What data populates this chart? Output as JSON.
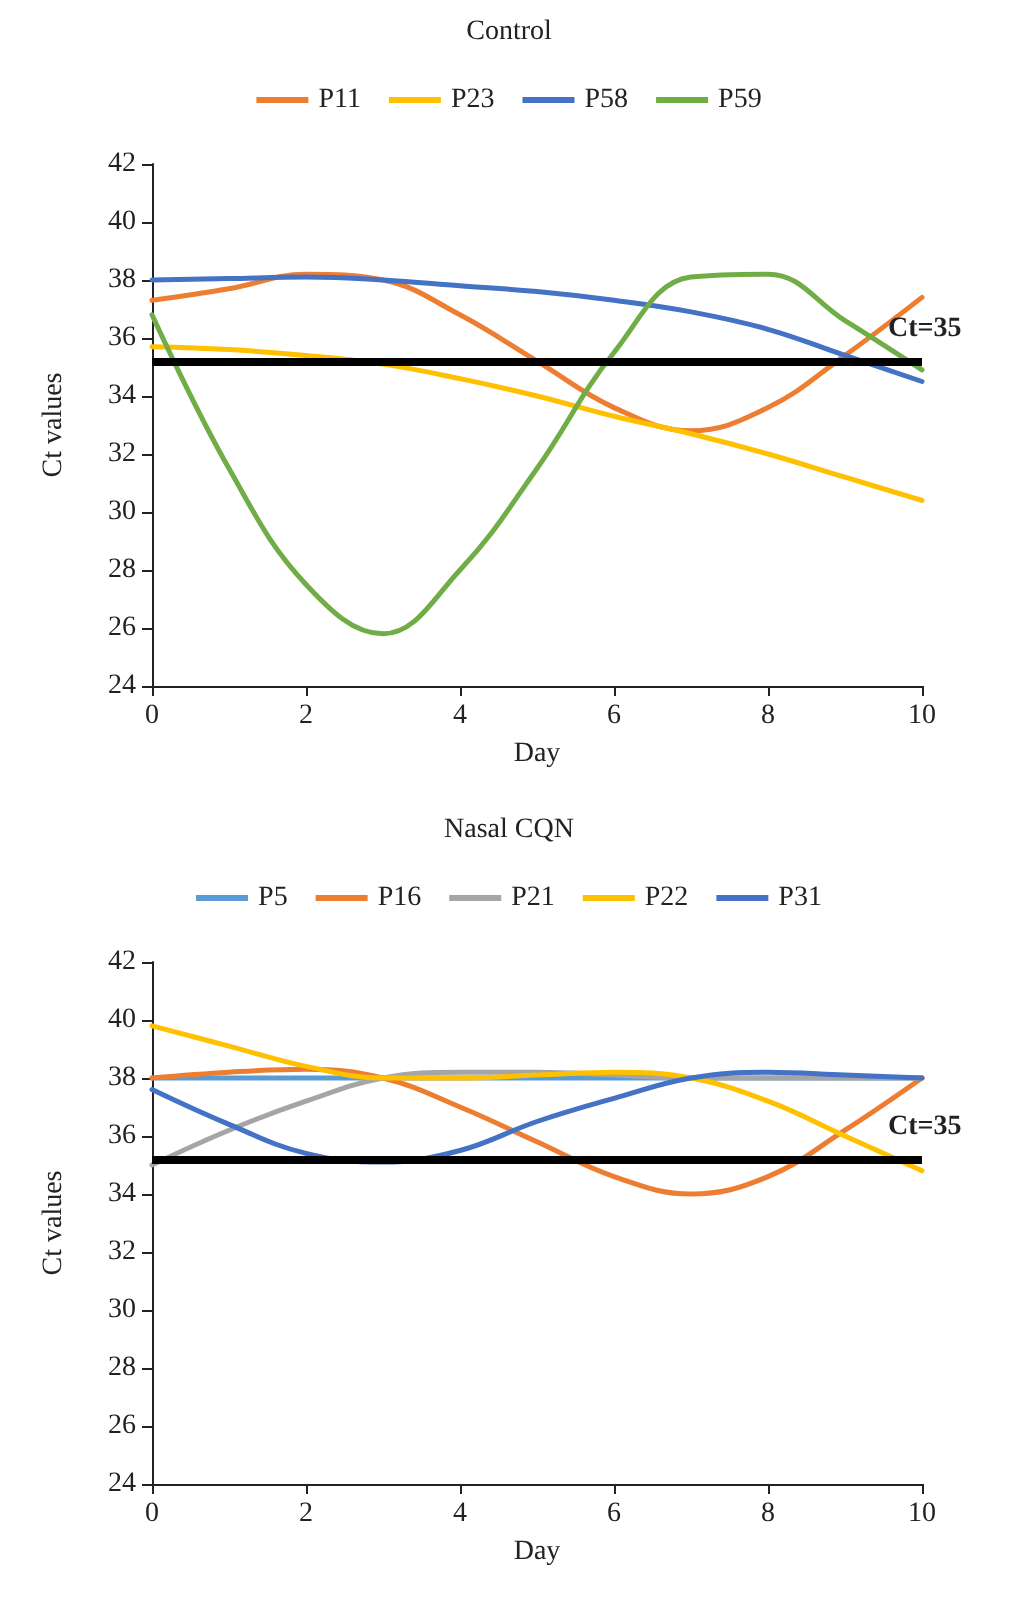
{
  "chart_data": [
    {
      "type": "line",
      "title": "Control",
      "xlabel": "Day",
      "ylabel": "Ct values",
      "x": [
        0,
        1,
        2,
        3,
        4,
        5,
        6,
        7,
        8,
        9,
        10
      ],
      "xlim": [
        0,
        10
      ],
      "xticks": [
        0,
        2,
        4,
        6,
        8,
        10
      ],
      "ylim": [
        24,
        42
      ],
      "yticks": [
        24,
        26,
        28,
        30,
        32,
        34,
        36,
        38,
        40,
        42
      ],
      "grid": false,
      "legend": "top",
      "marker": "none",
      "line_style": "solid",
      "series": [
        {
          "name": "P11",
          "color": "#ed7d31",
          "values": [
            37.3,
            37.7,
            38.2,
            38.0,
            36.8,
            35.2,
            33.6,
            32.8,
            33.6,
            35.4,
            37.4
          ]
        },
        {
          "name": "P23",
          "color": "#ffc000",
          "values": [
            35.7,
            35.6,
            35.4,
            35.1,
            34.6,
            34.0,
            33.3,
            32.7,
            32.0,
            31.2,
            30.4
          ]
        },
        {
          "name": "P58",
          "color": "#4472c4",
          "values": [
            38.0,
            38.05,
            38.1,
            38.0,
            37.8,
            37.6,
            37.3,
            36.9,
            36.3,
            35.4,
            34.5
          ]
        },
        {
          "name": "P59",
          "color": "#70ad47",
          "values": [
            36.8,
            31.5,
            27.5,
            25.8,
            28.0,
            31.5,
            35.5,
            38.1,
            38.2,
            36.6,
            34.9
          ]
        }
      ],
      "ref_lines": [
        {
          "axis": "y",
          "value": 35.2,
          "label": "Ct=35",
          "color": "#000000"
        }
      ]
    },
    {
      "type": "line",
      "title": "Nasal CQN",
      "xlabel": "Day",
      "ylabel": "Ct values",
      "x": [
        0,
        1,
        2,
        3,
        4,
        5,
        6,
        7,
        8,
        9,
        10
      ],
      "xlim": [
        0,
        10
      ],
      "xticks": [
        0,
        2,
        4,
        6,
        8,
        10
      ],
      "ylim": [
        24,
        42
      ],
      "yticks": [
        24,
        26,
        28,
        30,
        32,
        34,
        36,
        38,
        40,
        42
      ],
      "grid": false,
      "legend": "top",
      "marker": "none",
      "line_style": "solid",
      "series": [
        {
          "name": "P5",
          "color": "#5b9bd5",
          "values": [
            38,
            38,
            38,
            38,
            38,
            38,
            38,
            38,
            38,
            38,
            38
          ]
        },
        {
          "name": "P16",
          "color": "#ed7d31",
          "values": [
            38.0,
            38.2,
            38.3,
            38.0,
            37.0,
            35.8,
            34.6,
            34.0,
            34.6,
            36.2,
            38.0
          ]
        },
        {
          "name": "P21",
          "color": "#a5a5a5",
          "values": [
            35.0,
            36.2,
            37.2,
            38.0,
            38.2,
            38.2,
            38.1,
            38.0,
            38.0,
            38.0,
            38.0
          ]
        },
        {
          "name": "P22",
          "color": "#ffc000",
          "values": [
            39.8,
            39.1,
            38.4,
            38.0,
            38.0,
            38.1,
            38.2,
            38.0,
            37.2,
            36.0,
            34.8
          ]
        },
        {
          "name": "P31",
          "color": "#4472c4",
          "values": [
            37.6,
            36.4,
            35.4,
            35.1,
            35.5,
            36.5,
            37.3,
            38.0,
            38.2,
            38.1,
            38.0
          ]
        }
      ],
      "ref_lines": [
        {
          "axis": "y",
          "value": 35.2,
          "label": "Ct=35",
          "color": "#000000"
        }
      ]
    }
  ]
}
